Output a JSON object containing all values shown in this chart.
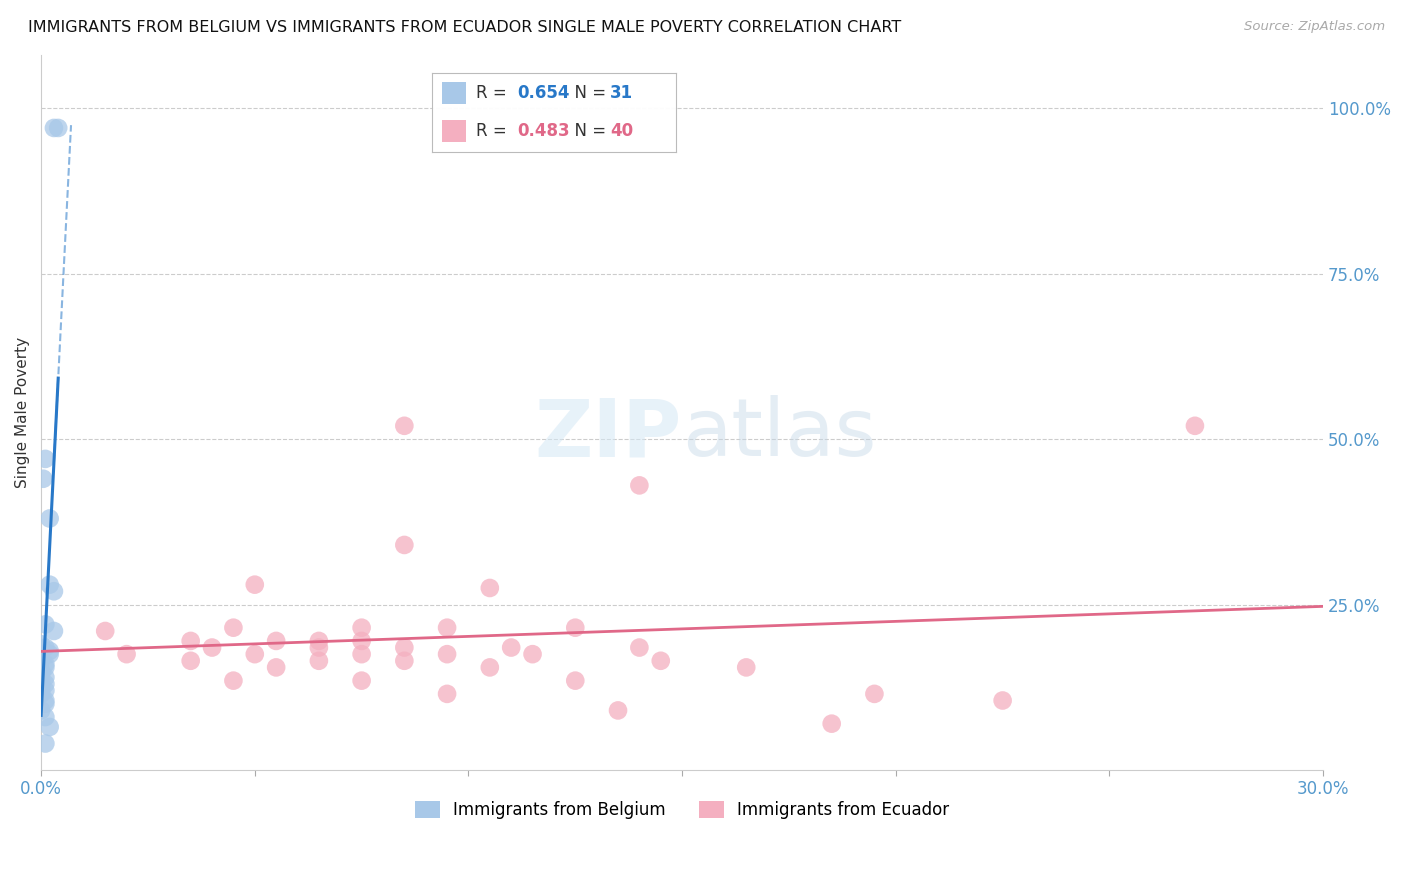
{
  "title": "IMMIGRANTS FROM BELGIUM VS IMMIGRANTS FROM ECUADOR SINGLE MALE POVERTY CORRELATION CHART",
  "source": "Source: ZipAtlas.com",
  "ylabel": "Single Male Poverty",
  "belgium_R": 0.654,
  "belgium_N": 31,
  "ecuador_R": 0.483,
  "ecuador_N": 40,
  "belgium_color": "#a8c8e8",
  "ecuador_color": "#f4afc0",
  "belgium_line_color": "#2878c8",
  "ecuador_line_color": "#e06888",
  "xlim": [
    0.0,
    0.3
  ],
  "ylim": [
    0.0,
    1.08
  ],
  "belgium_scatter": [
    [
      0.003,
      0.97
    ],
    [
      0.004,
      0.97
    ],
    [
      0.001,
      0.47
    ],
    [
      0.0005,
      0.44
    ],
    [
      0.002,
      0.38
    ],
    [
      0.002,
      0.28
    ],
    [
      0.003,
      0.27
    ],
    [
      0.001,
      0.22
    ],
    [
      0.003,
      0.21
    ],
    [
      0.0,
      0.19
    ],
    [
      0.001,
      0.185
    ],
    [
      0.002,
      0.18
    ],
    [
      0.002,
      0.175
    ],
    [
      0.0,
      0.165
    ],
    [
      0.001,
      0.16
    ],
    [
      0.001,
      0.155
    ],
    [
      0.0,
      0.15
    ],
    [
      0.0,
      0.145
    ],
    [
      0.001,
      0.14
    ],
    [
      0.0,
      0.135
    ],
    [
      0.001,
      0.13
    ],
    [
      0.0,
      0.125
    ],
    [
      0.0,
      0.12
    ],
    [
      0.001,
      0.12
    ],
    [
      0.0,
      0.115
    ],
    [
      0.001,
      0.105
    ],
    [
      0.001,
      0.1
    ],
    [
      0.0,
      0.09
    ],
    [
      0.001,
      0.08
    ],
    [
      0.002,
      0.065
    ],
    [
      0.001,
      0.04
    ]
  ],
  "ecuador_scatter": [
    [
      0.085,
      0.52
    ],
    [
      0.27,
      0.52
    ],
    [
      0.14,
      0.43
    ],
    [
      0.085,
      0.34
    ],
    [
      0.05,
      0.28
    ],
    [
      0.105,
      0.275
    ],
    [
      0.045,
      0.215
    ],
    [
      0.075,
      0.215
    ],
    [
      0.095,
      0.215
    ],
    [
      0.125,
      0.215
    ],
    [
      0.035,
      0.195
    ],
    [
      0.055,
      0.195
    ],
    [
      0.065,
      0.195
    ],
    [
      0.075,
      0.195
    ],
    [
      0.04,
      0.185
    ],
    [
      0.065,
      0.185
    ],
    [
      0.085,
      0.185
    ],
    [
      0.11,
      0.185
    ],
    [
      0.14,
      0.185
    ],
    [
      0.05,
      0.175
    ],
    [
      0.075,
      0.175
    ],
    [
      0.095,
      0.175
    ],
    [
      0.115,
      0.175
    ],
    [
      0.035,
      0.165
    ],
    [
      0.065,
      0.165
    ],
    [
      0.085,
      0.165
    ],
    [
      0.145,
      0.165
    ],
    [
      0.055,
      0.155
    ],
    [
      0.105,
      0.155
    ],
    [
      0.165,
      0.155
    ],
    [
      0.045,
      0.135
    ],
    [
      0.075,
      0.135
    ],
    [
      0.125,
      0.135
    ],
    [
      0.095,
      0.115
    ],
    [
      0.195,
      0.115
    ],
    [
      0.225,
      0.105
    ],
    [
      0.135,
      0.09
    ],
    [
      0.185,
      0.07
    ],
    [
      0.015,
      0.21
    ],
    [
      0.02,
      0.175
    ]
  ]
}
